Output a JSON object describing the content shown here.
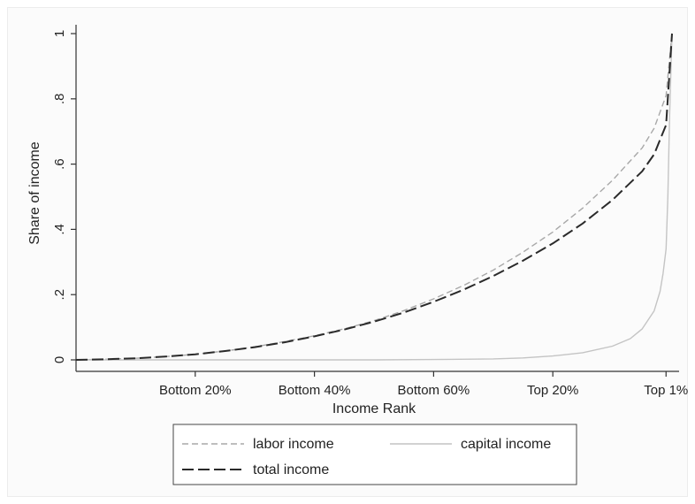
{
  "chart_data": {
    "type": "line",
    "title": "",
    "xlabel": "Income Rank",
    "ylabel": "Share of income",
    "xlim": [
      0,
      1
    ],
    "ylim": [
      0,
      1
    ],
    "x_ticks": [
      {
        "value": 0.2,
        "label": "Bottom 20%"
      },
      {
        "value": 0.4,
        "label": "Bottom 40%"
      },
      {
        "value": 0.6,
        "label": "Bottom 60%"
      },
      {
        "value": 0.8,
        "label": "Top 20%"
      },
      {
        "value": 0.99,
        "label": "Top 1%"
      }
    ],
    "y_ticks": [
      {
        "value": 0,
        "label": "0"
      },
      {
        "value": 0.2,
        "label": ".2"
      },
      {
        "value": 0.4,
        "label": ".4"
      },
      {
        "value": 0.6,
        "label": ".6"
      },
      {
        "value": 0.8,
        "label": ".8"
      },
      {
        "value": 1,
        "label": "1"
      }
    ],
    "grid": false,
    "legend_position": "bottom",
    "series": [
      {
        "name": "labor income",
        "style": "short-dash",
        "color": "#a8a8a8",
        "x": [
          0,
          0.05,
          0.1,
          0.15,
          0.2,
          0.25,
          0.3,
          0.35,
          0.4,
          0.45,
          0.5,
          0.55,
          0.6,
          0.65,
          0.7,
          0.75,
          0.8,
          0.85,
          0.9,
          0.95,
          0.97,
          0.99,
          1
        ],
        "y": [
          0,
          0.002,
          0.005,
          0.01,
          0.017,
          0.027,
          0.04,
          0.056,
          0.074,
          0.095,
          0.12,
          0.151,
          0.187,
          0.228,
          0.275,
          0.33,
          0.392,
          0.465,
          0.55,
          0.65,
          0.71,
          0.81,
          1
        ]
      },
      {
        "name": "capital income",
        "style": "solid",
        "color": "#c4c4c4",
        "x": [
          0,
          0.1,
          0.2,
          0.3,
          0.4,
          0.5,
          0.6,
          0.7,
          0.75,
          0.8,
          0.85,
          0.9,
          0.93,
          0.95,
          0.97,
          0.98,
          0.985,
          0.99,
          0.993,
          0.996,
          1
        ],
        "y": [
          0,
          0,
          0,
          0,
          0,
          0,
          0.001,
          0.003,
          0.006,
          0.012,
          0.022,
          0.042,
          0.065,
          0.095,
          0.15,
          0.21,
          0.265,
          0.34,
          0.5,
          0.75,
          1
        ]
      },
      {
        "name": "total income",
        "style": "long-dash",
        "color": "#2a2a2a",
        "x": [
          0,
          0.05,
          0.1,
          0.15,
          0.2,
          0.25,
          0.3,
          0.35,
          0.4,
          0.45,
          0.5,
          0.55,
          0.6,
          0.65,
          0.7,
          0.75,
          0.8,
          0.85,
          0.9,
          0.95,
          0.97,
          0.99,
          1
        ],
        "y": [
          0,
          0.002,
          0.005,
          0.01,
          0.017,
          0.027,
          0.039,
          0.054,
          0.072,
          0.093,
          0.117,
          0.145,
          0.178,
          0.215,
          0.257,
          0.304,
          0.357,
          0.418,
          0.49,
          0.578,
          0.63,
          0.72,
          1
        ]
      }
    ]
  }
}
